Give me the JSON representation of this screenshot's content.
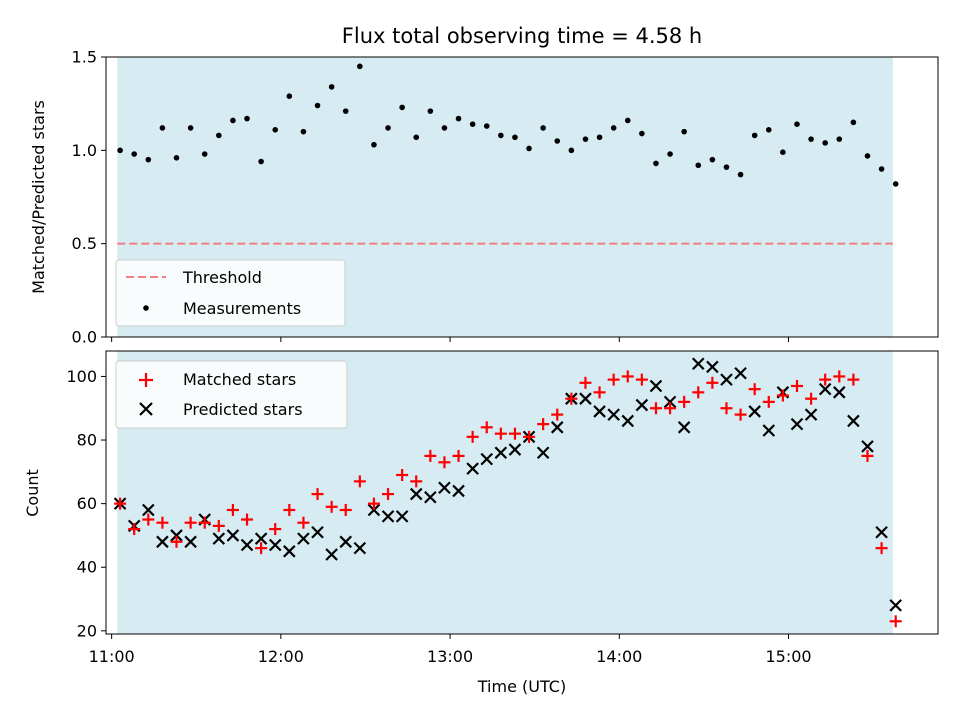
{
  "chart_data": [
    {
      "type": "scatter",
      "title": "Flux total observing time = 4.58 h",
      "ylabel": "Matched/Predicted stars",
      "xlabel": "",
      "xlim": [
        "10:58",
        "15:53"
      ],
      "ylim": [
        0,
        1.5
      ],
      "yticks": [
        0,
        0.5,
        1.0,
        1.5
      ],
      "ytick_labels": [
        "0.0",
        "0.5",
        "1.0",
        "1.5"
      ],
      "shaded_span": [
        "11:02",
        "15:37"
      ],
      "shade_color": "#add8e6",
      "legend_position": "lower-left",
      "threshold": {
        "name": "Threshold",
        "y": 0.5,
        "color": "#f08080",
        "style": "dashed"
      },
      "series": [
        {
          "name": "Measurements",
          "marker": "dot",
          "color": "#000000",
          "x": [
            "11:03",
            "11:08",
            "11:13",
            "11:18",
            "11:23",
            "11:28",
            "11:33",
            "11:38",
            "11:43",
            "11:48",
            "11:53",
            "11:58",
            "12:03",
            "12:08",
            "12:13",
            "12:18",
            "12:23",
            "12:28",
            "12:33",
            "12:38",
            "12:43",
            "12:48",
            "12:53",
            "12:58",
            "13:03",
            "13:08",
            "13:13",
            "13:18",
            "13:23",
            "13:28",
            "13:33",
            "13:38",
            "13:43",
            "13:48",
            "13:53",
            "13:58",
            "14:03",
            "14:08",
            "14:13",
            "14:18",
            "14:23",
            "14:28",
            "14:33",
            "14:38",
            "14:43",
            "14:48",
            "14:53",
            "14:58",
            "15:03",
            "15:08",
            "15:13",
            "15:18",
            "15:23",
            "15:28",
            "15:33",
            "15:38"
          ],
          "y": [
            1.0,
            0.98,
            0.95,
            1.12,
            0.96,
            1.12,
            0.98,
            1.08,
            1.16,
            1.17,
            0.94,
            1.11,
            1.29,
            1.1,
            1.24,
            1.34,
            1.21,
            1.45,
            1.03,
            1.12,
            1.23,
            1.07,
            1.21,
            1.12,
            1.17,
            1.14,
            1.13,
            1.08,
            1.07,
            1.01,
            1.12,
            1.05,
            1.0,
            1.06,
            1.07,
            1.12,
            1.16,
            1.09,
            0.93,
            0.98,
            1.1,
            0.92,
            0.95,
            0.91,
            0.87,
            1.08,
            1.11,
            0.99,
            1.14,
            1.06,
            1.04,
            1.06,
            1.15,
            0.97,
            0.9,
            0.82
          ]
        }
      ]
    },
    {
      "type": "scatter",
      "title": "",
      "ylabel": "Count",
      "xlabel": "Time (UTC)",
      "xlim": [
        "10:58",
        "15:53"
      ],
      "ylim": [
        19,
        108
      ],
      "xticks": [
        "11:00",
        "12:00",
        "13:00",
        "14:00",
        "15:00"
      ],
      "yticks": [
        20,
        40,
        60,
        80,
        100
      ],
      "ytick_labels": [
        "20",
        "40",
        "60",
        "80",
        "100"
      ],
      "shaded_span": [
        "11:02",
        "15:37"
      ],
      "shade_color": "#add8e6",
      "legend_position": "upper-left",
      "series": [
        {
          "name": "Matched stars",
          "marker": "plus",
          "color": "#ff0000",
          "x": [
            "11:03",
            "11:08",
            "11:13",
            "11:18",
            "11:23",
            "11:28",
            "11:33",
            "11:38",
            "11:43",
            "11:48",
            "11:53",
            "11:58",
            "12:03",
            "12:08",
            "12:13",
            "12:18",
            "12:23",
            "12:28",
            "12:33",
            "12:38",
            "12:43",
            "12:48",
            "12:53",
            "12:58",
            "13:03",
            "13:08",
            "13:13",
            "13:18",
            "13:23",
            "13:28",
            "13:33",
            "13:38",
            "13:43",
            "13:48",
            "13:53",
            "13:58",
            "14:03",
            "14:08",
            "14:13",
            "14:18",
            "14:23",
            "14:28",
            "14:33",
            "14:38",
            "14:43",
            "14:48",
            "14:53",
            "14:58",
            "15:03",
            "15:08",
            "15:13",
            "15:18",
            "15:23",
            "15:28",
            "15:33",
            "15:38"
          ],
          "y": [
            60,
            52,
            55,
            54,
            48,
            54,
            54,
            53,
            58,
            55,
            46,
            52,
            58,
            54,
            63,
            59,
            58,
            67,
            60,
            63,
            69,
            67,
            75,
            73,
            75,
            81,
            84,
            82,
            82,
            81,
            85,
            88,
            93,
            98,
            95,
            99,
            100,
            99,
            90,
            90,
            92,
            95,
            98,
            90,
            88,
            96,
            92,
            94,
            97,
            93,
            99,
            100,
            99,
            75,
            46,
            23
          ]
        },
        {
          "name": "Predicted stars",
          "marker": "x",
          "color": "#000000",
          "x": [
            "11:03",
            "11:08",
            "11:13",
            "11:18",
            "11:23",
            "11:28",
            "11:33",
            "11:38",
            "11:43",
            "11:48",
            "11:53",
            "11:58",
            "12:03",
            "12:08",
            "12:13",
            "12:18",
            "12:23",
            "12:28",
            "12:33",
            "12:38",
            "12:43",
            "12:48",
            "12:53",
            "12:58",
            "13:03",
            "13:08",
            "13:13",
            "13:18",
            "13:23",
            "13:28",
            "13:33",
            "13:38",
            "13:43",
            "13:48",
            "13:53",
            "13:58",
            "14:03",
            "14:08",
            "14:13",
            "14:18",
            "14:23",
            "14:28",
            "14:33",
            "14:38",
            "14:43",
            "14:48",
            "14:53",
            "14:58",
            "15:03",
            "15:08",
            "15:13",
            "15:18",
            "15:23",
            "15:28",
            "15:33",
            "15:38"
          ],
          "y": [
            60,
            53,
            58,
            48,
            50,
            48,
            55,
            49,
            50,
            47,
            49,
            47,
            45,
            49,
            51,
            44,
            48,
            46,
            58,
            56,
            56,
            63,
            62,
            65,
            64,
            71,
            74,
            76,
            77,
            81,
            76,
            84,
            93,
            93,
            89,
            88,
            86,
            91,
            97,
            92,
            84,
            104,
            103,
            99,
            101,
            89,
            83,
            95,
            85,
            88,
            96,
            95,
            86,
            78,
            51,
            28
          ]
        }
      ]
    }
  ]
}
